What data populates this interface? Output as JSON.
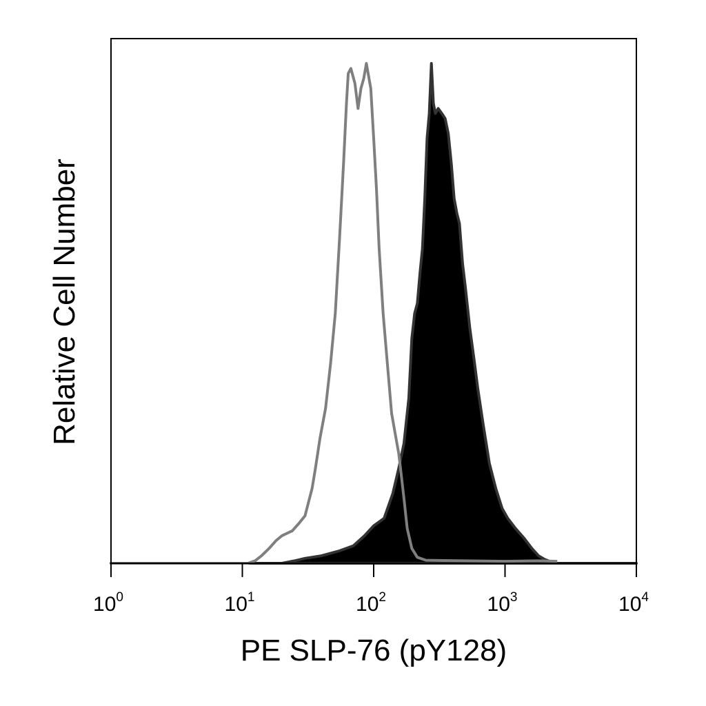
{
  "chart_data": {
    "type": "area",
    "title": "",
    "xlabel": "PE SLP-76 (pY128)",
    "ylabel": "Relative Cell Number",
    "x_scale": "log",
    "xlim": [
      1,
      10000
    ],
    "ylim": [
      0,
      100
    ],
    "grid": false,
    "legend": "none",
    "x_ticks": [
      {
        "base": "10",
        "exp": "0",
        "value": 1
      },
      {
        "base": "10",
        "exp": "1",
        "value": 10
      },
      {
        "base": "10",
        "exp": "2",
        "value": 100
      },
      {
        "base": "10",
        "exp": "3",
        "value": 1000
      },
      {
        "base": "10",
        "exp": "4",
        "value": 10000
      }
    ],
    "series": [
      {
        "style": "outline",
        "color": "#7f7f7f",
        "points": [
          [
            1,
            0
          ],
          [
            5,
            0
          ],
          [
            11,
            0
          ],
          [
            12.5,
            0.5
          ],
          [
            14,
            1.5
          ],
          [
            16,
            3
          ],
          [
            18,
            4.5
          ],
          [
            20,
            5.5
          ],
          [
            24,
            6.5
          ],
          [
            27,
            8
          ],
          [
            30,
            9.5
          ],
          [
            34,
            15
          ],
          [
            36,
            19
          ],
          [
            39,
            25
          ],
          [
            43,
            31
          ],
          [
            47,
            40
          ],
          [
            51,
            50
          ],
          [
            55,
            65
          ],
          [
            59,
            80
          ],
          [
            62,
            92
          ],
          [
            64,
            98
          ],
          [
            67,
            99
          ],
          [
            72,
            96
          ],
          [
            76,
            91
          ],
          [
            80,
            95
          ],
          [
            84,
            97
          ],
          [
            88,
            100
          ],
          [
            95,
            95
          ],
          [
            100,
            85
          ],
          [
            105,
            75
          ],
          [
            110,
            63
          ],
          [
            118,
            50
          ],
          [
            127,
            40
          ],
          [
            137,
            30
          ],
          [
            148,
            25
          ],
          [
            155,
            22
          ],
          [
            160,
            19
          ],
          [
            170,
            13
          ],
          [
            180,
            7
          ],
          [
            195,
            3
          ],
          [
            215,
            1.2
          ],
          [
            250,
            0.6
          ],
          [
            500,
            0.5
          ],
          [
            1000,
            0.4
          ],
          [
            1800,
            0.5
          ],
          [
            2500,
            0.4
          ]
        ]
      },
      {
        "style": "filled",
        "color": "#000000",
        "outline_color": "#333333",
        "points": [
          [
            1,
            0
          ],
          [
            20,
            0
          ],
          [
            25,
            0.5
          ],
          [
            30,
            1
          ],
          [
            40,
            1.5
          ],
          [
            55,
            2.5
          ],
          [
            70,
            3.5
          ],
          [
            85,
            5.5
          ],
          [
            100,
            7.5
          ],
          [
            120,
            9
          ],
          [
            140,
            14
          ],
          [
            155,
            19
          ],
          [
            170,
            24
          ],
          [
            185,
            33
          ],
          [
            195,
            45
          ],
          [
            205,
            50
          ],
          [
            215,
            52
          ],
          [
            225,
            58
          ],
          [
            235,
            63
          ],
          [
            245,
            73
          ],
          [
            255,
            85
          ],
          [
            265,
            90
          ],
          [
            275,
            100
          ],
          [
            285,
            92
          ],
          [
            295,
            90
          ],
          [
            310,
            91
          ],
          [
            330,
            90
          ],
          [
            350,
            89
          ],
          [
            370,
            86
          ],
          [
            390,
            80
          ],
          [
            410,
            73
          ],
          [
            430,
            70
          ],
          [
            450,
            68
          ],
          [
            475,
            60
          ],
          [
            500,
            55
          ],
          [
            540,
            47
          ],
          [
            580,
            41
          ],
          [
            620,
            35
          ],
          [
            680,
            28
          ],
          [
            760,
            20
          ],
          [
            850,
            15
          ],
          [
            950,
            11
          ],
          [
            1050,
            9
          ],
          [
            1200,
            7
          ],
          [
            1400,
            5
          ],
          [
            1600,
            3
          ],
          [
            1800,
            1.5
          ],
          [
            2000,
            0.8
          ],
          [
            2400,
            0
          ],
          [
            10000,
            0
          ]
        ]
      }
    ]
  }
}
